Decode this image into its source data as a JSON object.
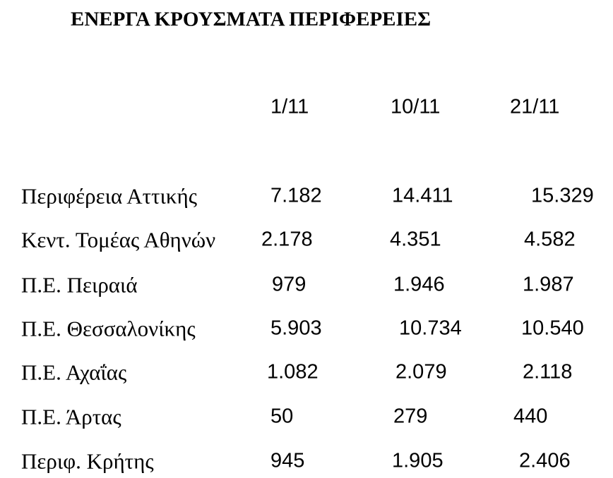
{
  "title": "ΕΝΕΡΓΑ ΚΡΟΥΣΜΑΤΑ ΠΕΡΙΦΕΡΕΙΕΣ",
  "table": {
    "columns": [
      "1/11",
      "10/11",
      "21/11"
    ],
    "rows": [
      {
        "label": "Περιφέρεια Αττικής",
        "cells": [
          "7.182",
          "14.411",
          "15.329"
        ]
      },
      {
        "label": "Κεντ. Τομέας Αθηνών",
        "cells": [
          "2.178",
          "4.351",
          "4.582"
        ]
      },
      {
        "label": "Π.Ε. Πειραιά",
        "cells": [
          "979",
          "1.946",
          "1.987"
        ]
      },
      {
        "label": "Π.Ε. Θεσσαλονίκης",
        "cells": [
          "5.903",
          "10.734",
          "10.540"
        ]
      },
      {
        "label": "Π.Ε. Αχαΐας",
        "cells": [
          "1.082",
          "2.079",
          "2.118"
        ]
      },
      {
        "label": "Π.Ε. Άρτας",
        "cells": [
          "50",
          "279",
          "440"
        ]
      },
      {
        "label": "Περιφ. Κρήτης",
        "cells": [
          "945",
          "1.905",
          "2.406"
        ]
      }
    ]
  }
}
